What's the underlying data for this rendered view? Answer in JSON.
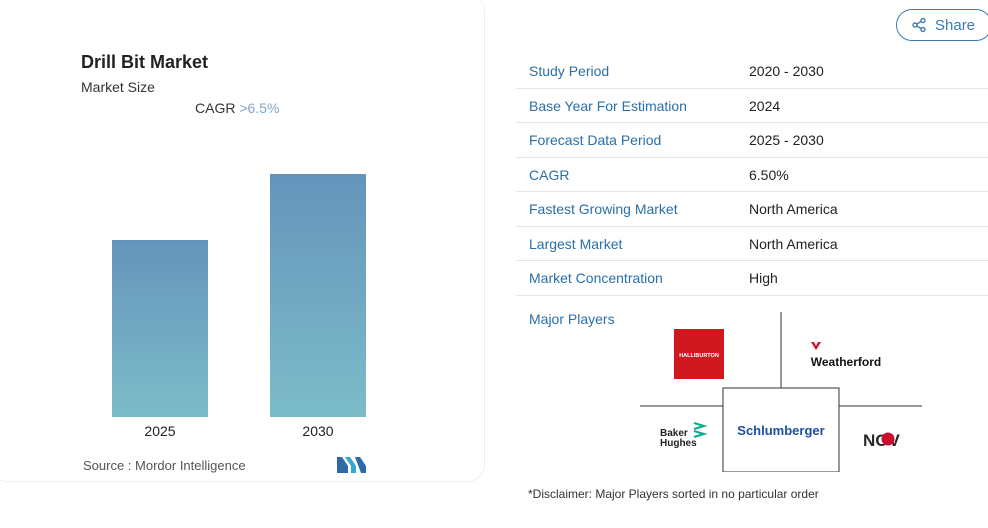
{
  "chart": {
    "title": "Drill Bit Market",
    "subtitle": "Market Size",
    "cagr_label": "CAGR",
    "cagr_value": ">6.5%",
    "source": "Source :  Mordor Intelligence"
  },
  "chart_data": {
    "type": "bar",
    "categories": [
      "2025",
      "2030"
    ],
    "values": [
      0.59,
      0.81
    ],
    "colors": [
      "#6594bb",
      "#7cbcc8"
    ]
  },
  "share": {
    "label": "Share",
    "icon": "share-icon"
  },
  "info": {
    "rows": [
      {
        "key": "Study Period",
        "value": "2020 - 2030"
      },
      {
        "key": "Base Year For Estimation",
        "value": "2024"
      },
      {
        "key": "Forecast Data Period",
        "value": "2025 - 2030"
      },
      {
        "key": "CAGR",
        "value": "6.50%"
      },
      {
        "key": "Fastest Growing Market",
        "value": "North America"
      },
      {
        "key": "Largest Market",
        "value": "North America"
      },
      {
        "key": "Market Concentration",
        "value": "High"
      }
    ],
    "major_players_label": "Major Players"
  },
  "players": {
    "halliburton": "HALLIBURTON",
    "weatherford": "Weatherford",
    "baker_line1": "Baker",
    "baker_line2": "Hughes",
    "schlumberger": "Schlumberger",
    "nov": "NOV"
  },
  "disclaimer": "*Disclaimer: Major Players sorted in no particular order",
  "colors": {
    "accent": "#2a6fa8",
    "halliburton_red": "#d0191f",
    "nov_red": "#c8102e"
  }
}
